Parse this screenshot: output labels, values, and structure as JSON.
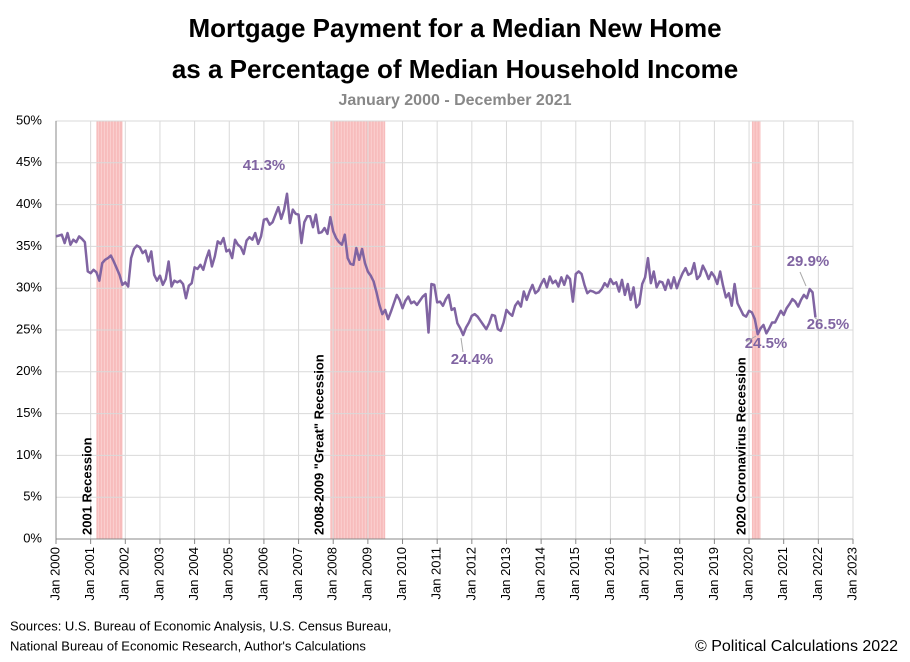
{
  "chart_data": {
    "type": "line",
    "title": [
      "Mortgage Payment for a Median New Home",
      "as a Percentage of Median Household Income"
    ],
    "subtitle": "January 2000 - December 2021",
    "sources": [
      "Sources: U.S. Bureau of Economic Analysis, U.S. Census Bureau,",
      "National Bureau of Economic Research, Author's Calculations"
    ],
    "copyright": "© Political Calculations 2022",
    "xlim": [
      "2000-01",
      "2023-01"
    ],
    "xticks": [
      {
        "value": "2000-01",
        "label": "Jan 2000"
      },
      {
        "value": "2001-01",
        "label": "Jan 2001"
      },
      {
        "value": "2002-01",
        "label": "Jan 2002"
      },
      {
        "value": "2003-01",
        "label": "Jan 2003"
      },
      {
        "value": "2004-01",
        "label": "Jan 2004"
      },
      {
        "value": "2005-01",
        "label": "Jan 2005"
      },
      {
        "value": "2006-01",
        "label": "Jan 2006"
      },
      {
        "value": "2007-01",
        "label": "Jan 2007"
      },
      {
        "value": "2008-01",
        "label": "Jan 2008"
      },
      {
        "value": "2009-01",
        "label": "Jan 2009"
      },
      {
        "value": "2010-01",
        "label": "Jan 2010"
      },
      {
        "value": "2011-01",
        "label": "Jan 2011"
      },
      {
        "value": "2012-01",
        "label": "Jan 2012"
      },
      {
        "value": "2013-01",
        "label": "Jan 2013"
      },
      {
        "value": "2014-01",
        "label": "Jan 2014"
      },
      {
        "value": "2015-01",
        "label": "Jan 2015"
      },
      {
        "value": "2016-01",
        "label": "Jan 2016"
      },
      {
        "value": "2017-01",
        "label": "Jan 2017"
      },
      {
        "value": "2018-01",
        "label": "Jan 2018"
      },
      {
        "value": "2019-01",
        "label": "Jan 2019"
      },
      {
        "value": "2020-01",
        "label": "Jan 2020"
      },
      {
        "value": "2021-01",
        "label": "Jan 2021"
      },
      {
        "value": "2022-01",
        "label": "Jan 2022"
      },
      {
        "value": "2023-01",
        "label": "Jan 2023"
      }
    ],
    "ylim": [
      0,
      50
    ],
    "yticks": [
      {
        "value": 0,
        "label": "0%"
      },
      {
        "value": 5,
        "label": "5%"
      },
      {
        "value": 10,
        "label": "10%"
      },
      {
        "value": 15,
        "label": "15%"
      },
      {
        "value": 20,
        "label": "20%"
      },
      {
        "value": 25,
        "label": "25%"
      },
      {
        "value": 30,
        "label": "30%"
      },
      {
        "value": 35,
        "label": "35%"
      },
      {
        "value": 40,
        "label": "40%"
      },
      {
        "value": 45,
        "label": "45%"
      },
      {
        "value": 50,
        "label": "50%"
      }
    ],
    "grid": true,
    "recessions": [
      {
        "start": "2001-03",
        "end": "2001-11",
        "label": "2001 Recession"
      },
      {
        "start": "2007-12",
        "end": "2009-06",
        "label": "2008-2009 \"Great\" Recession"
      },
      {
        "start": "2020-02",
        "end": "2020-04",
        "label": "2020 Coronavirus Recession"
      }
    ],
    "annotations": [
      "41.3%",
      "24.4%",
      "24.5%",
      "29.9%",
      "26.5%"
    ],
    "x": [
      "2000-01",
      "2000-02",
      "2000-03",
      "2000-04",
      "2000-05",
      "2000-06",
      "2000-07",
      "2000-08",
      "2000-09",
      "2000-10",
      "2000-11",
      "2000-12",
      "2001-01",
      "2001-02",
      "2001-03",
      "2001-04",
      "2001-05",
      "2001-06",
      "2001-07",
      "2001-08",
      "2001-09",
      "2001-10",
      "2001-11",
      "2001-12",
      "2002-01",
      "2002-02",
      "2002-03",
      "2002-04",
      "2002-05",
      "2002-06",
      "2002-07",
      "2002-08",
      "2002-09",
      "2002-10",
      "2002-11",
      "2002-12",
      "2003-01",
      "2003-02",
      "2003-03",
      "2003-04",
      "2003-05",
      "2003-06",
      "2003-07",
      "2003-08",
      "2003-09",
      "2003-10",
      "2003-11",
      "2003-12",
      "2004-01",
      "2004-02",
      "2004-03",
      "2004-04",
      "2004-05",
      "2004-06",
      "2004-07",
      "2004-08",
      "2004-09",
      "2004-10",
      "2004-11",
      "2004-12",
      "2005-01",
      "2005-02",
      "2005-03",
      "2005-04",
      "2005-05",
      "2005-06",
      "2005-07",
      "2005-08",
      "2005-09",
      "2005-10",
      "2005-11",
      "2005-12",
      "2006-01",
      "2006-02",
      "2006-03",
      "2006-04",
      "2006-05",
      "2006-06",
      "2006-07",
      "2006-08",
      "2006-09",
      "2006-10",
      "2006-11",
      "2006-12",
      "2007-01",
      "2007-02",
      "2007-03",
      "2007-04",
      "2007-05",
      "2007-06",
      "2007-07",
      "2007-08",
      "2007-09",
      "2007-10",
      "2007-11",
      "2007-12",
      "2008-01",
      "2008-02",
      "2008-03",
      "2008-04",
      "2008-05",
      "2008-06",
      "2008-07",
      "2008-08",
      "2008-09",
      "2008-10",
      "2008-11",
      "2008-12",
      "2009-01",
      "2009-02",
      "2009-03",
      "2009-04",
      "2009-05",
      "2009-06",
      "2009-07",
      "2009-08",
      "2009-09",
      "2009-10",
      "2009-11",
      "2009-12",
      "2010-01",
      "2010-02",
      "2010-03",
      "2010-04",
      "2010-05",
      "2010-06",
      "2010-07",
      "2010-08",
      "2010-09",
      "2010-10",
      "2010-11",
      "2010-12",
      "2011-01",
      "2011-02",
      "2011-03",
      "2011-04",
      "2011-05",
      "2011-06",
      "2011-07",
      "2011-08",
      "2011-09",
      "2011-10",
      "2011-11",
      "2011-12",
      "2012-01",
      "2012-02",
      "2012-03",
      "2012-04",
      "2012-05",
      "2012-06",
      "2012-07",
      "2012-08",
      "2012-09",
      "2012-10",
      "2012-11",
      "2012-12",
      "2013-01",
      "2013-02",
      "2013-03",
      "2013-04",
      "2013-05",
      "2013-06",
      "2013-07",
      "2013-08",
      "2013-09",
      "2013-10",
      "2013-11",
      "2013-12",
      "2014-01",
      "2014-02",
      "2014-03",
      "2014-04",
      "2014-05",
      "2014-06",
      "2014-07",
      "2014-08",
      "2014-09",
      "2014-10",
      "2014-11",
      "2014-12",
      "2015-01",
      "2015-02",
      "2015-03",
      "2015-04",
      "2015-05",
      "2015-06",
      "2015-07",
      "2015-08",
      "2015-09",
      "2015-10",
      "2015-11",
      "2015-12",
      "2016-01",
      "2016-02",
      "2016-03",
      "2016-04",
      "2016-05",
      "2016-06",
      "2016-07",
      "2016-08",
      "2016-09",
      "2016-10",
      "2016-11",
      "2016-12",
      "2017-01",
      "2017-02",
      "2017-03",
      "2017-04",
      "2017-05",
      "2017-06",
      "2017-07",
      "2017-08",
      "2017-09",
      "2017-10",
      "2017-11",
      "2017-12",
      "2018-01",
      "2018-02",
      "2018-03",
      "2018-04",
      "2018-05",
      "2018-06",
      "2018-07",
      "2018-08",
      "2018-09",
      "2018-10",
      "2018-11",
      "2018-12",
      "2019-01",
      "2019-02",
      "2019-03",
      "2019-04",
      "2019-05",
      "2019-06",
      "2019-07",
      "2019-08",
      "2019-09",
      "2019-10",
      "2019-11",
      "2019-12",
      "2020-01",
      "2020-02",
      "2020-03",
      "2020-04",
      "2020-05",
      "2020-06",
      "2020-07",
      "2020-08",
      "2020-09",
      "2020-10",
      "2020-11",
      "2020-12",
      "2021-01",
      "2021-02",
      "2021-03",
      "2021-04",
      "2021-05",
      "2021-06",
      "2021-07",
      "2021-08",
      "2021-09",
      "2021-10",
      "2021-11",
      "2021-12"
    ],
    "series": [
      {
        "color": "#8064a2",
        "values": [
          36.2,
          36.3,
          36.4,
          35.4,
          36.6,
          35.2,
          35.8,
          35.5,
          36.2,
          35.9,
          35.5,
          32.0,
          31.8,
          32.2,
          31.9,
          30.9,
          33.0,
          33.4,
          33.6,
          33.9,
          33.2,
          32.4,
          31.6,
          30.4,
          30.7,
          30.2,
          33.6,
          34.7,
          35.1,
          34.9,
          34.2,
          34.5,
          33.2,
          34.4,
          31.6,
          30.9,
          31.5,
          30.4,
          31.1,
          33.2,
          30.2,
          30.9,
          30.7,
          30.9,
          30.5,
          28.8,
          30.3,
          30.6,
          32.5,
          32.3,
          32.8,
          32.2,
          33.5,
          34.5,
          32.6,
          33.8,
          35.6,
          35.3,
          36.0,
          34.4,
          34.6,
          33.6,
          35.8,
          35.2,
          34.9,
          34.1,
          35.7,
          36.1,
          35.8,
          36.6,
          35.3,
          36.2,
          38.2,
          38.3,
          37.6,
          37.9,
          38.8,
          39.7,
          38.3,
          39.4,
          41.3,
          37.8,
          39.4,
          38.9,
          38.8,
          35.4,
          37.9,
          38.6,
          38.6,
          37.3,
          38.8,
          36.6,
          36.7,
          37.2,
          36.5,
          38.5,
          36.8,
          36.0,
          35.5,
          35.2,
          36.4,
          33.6,
          32.9,
          32.8,
          34.8,
          33.4,
          34.7,
          33.0,
          32.0,
          31.5,
          30.8,
          29.5,
          28.0,
          26.9,
          27.4,
          26.3,
          27.2,
          28.2,
          29.2,
          28.6,
          27.6,
          28.5,
          29.0,
          28.2,
          28.4,
          28.0,
          28.5,
          29.0,
          29.3,
          24.7,
          30.5,
          30.4,
          28.3,
          28.4,
          27.9,
          28.7,
          29.2,
          27.4,
          27.6,
          25.8,
          25.2,
          24.4,
          25.3,
          25.9,
          26.7,
          26.9,
          26.6,
          26.1,
          25.6,
          25.1,
          25.8,
          26.8,
          26.7,
          25.1,
          24.9,
          25.9,
          27.4,
          27.0,
          26.7,
          27.9,
          28.4,
          27.8,
          29.6,
          28.6,
          29.6,
          30.4,
          29.4,
          29.7,
          30.5,
          31.1,
          30.1,
          31.4,
          30.6,
          30.9,
          30.2,
          31.3,
          30.4,
          31.5,
          31.1,
          28.4,
          31.7,
          32.0,
          31.7,
          30.4,
          29.4,
          29.7,
          29.6,
          29.4,
          29.5,
          29.9,
          30.6,
          30.2,
          31.1,
          30.5,
          30.7,
          29.6,
          31.0,
          29.2,
          30.5,
          28.6,
          30.1,
          27.7,
          28.1,
          30.5,
          31.3,
          33.6,
          30.6,
          32.0,
          30.1,
          30.8,
          30.7,
          29.8,
          31.0,
          30.0,
          31.3,
          30.0,
          31.0,
          31.8,
          32.4,
          31.6,
          31.8,
          33.0,
          31.1,
          31.5,
          32.7,
          32.0,
          31.1,
          31.9,
          31.4,
          30.5,
          32.0,
          30.3,
          28.9,
          29.4,
          27.9,
          30.5,
          28.2,
          27.5,
          26.8,
          26.6,
          27.3,
          27.1,
          26.3,
          24.5,
          25.2,
          25.6,
          24.6,
          25.2,
          25.9,
          25.9,
          26.6,
          27.3,
          26.8,
          27.6,
          28.1,
          28.7,
          28.4,
          27.8,
          28.6,
          29.2,
          28.8,
          29.9,
          29.5,
          26.5
        ]
      }
    ]
  }
}
